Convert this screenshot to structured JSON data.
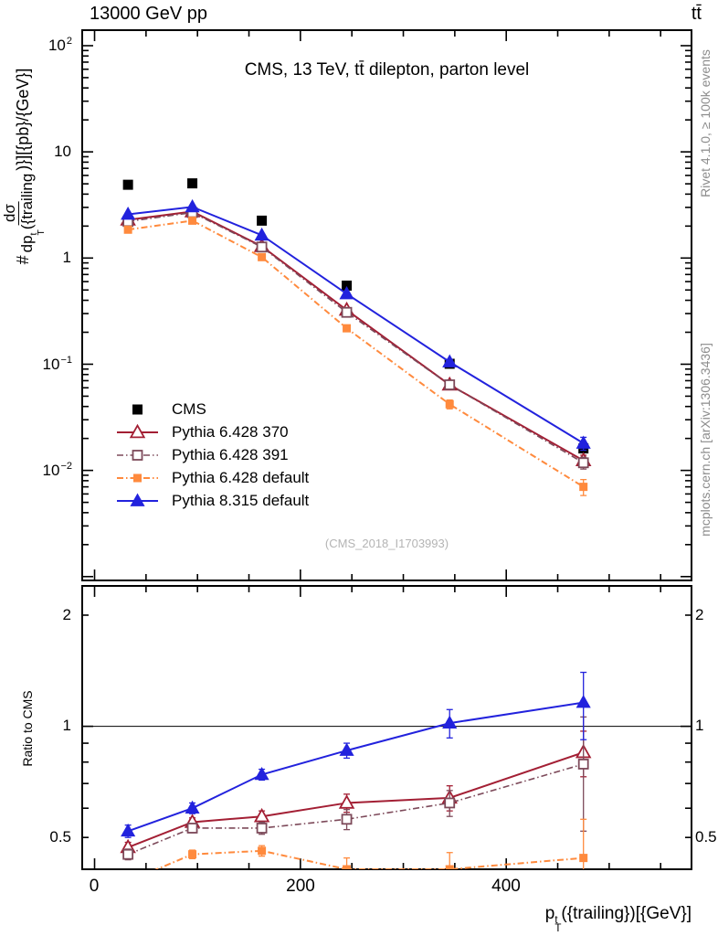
{
  "header": {
    "beam_energy": "13000 GeV pp",
    "process": "tt̄"
  },
  "plot_title": "CMS, 13 TeV, tt̄ dilepton, parton level",
  "watermark": "(CMS_2018_I1703993)",
  "side_notes": {
    "generator_note": "Rivet 4.1.0, ≥ 100k events",
    "site_note": "mcplots.cern.ch [arXiv:1306.3436]"
  },
  "axes": {
    "y_top_title": {
      "prefix": "#",
      "numerator": "dσ",
      "den_base": "dp",
      "den_sup": "t",
      "den_sub": "T",
      "den_tail": "({trailing",
      "suffix": ")}][{pb}/{GeV}]"
    },
    "y_top_ticks": [
      {
        "base": "10",
        "exp": "2"
      },
      {
        "base": "10",
        "exp": ""
      },
      {
        "base": "1",
        "exp": ""
      },
      {
        "base": "10",
        "exp": "−1"
      },
      {
        "base": "10",
        "exp": "−2"
      }
    ],
    "y_bottom_label": "Ratio to CMS",
    "y_bottom_ticks": [
      "2",
      "1",
      "0.5"
    ],
    "x_ticks": [
      "0",
      "200",
      "400"
    ],
    "x_title": {
      "base": "p",
      "sup": "t",
      "sub": "T",
      "tail": "({trailing})[{GeV}]"
    }
  },
  "chart_data": {
    "type": "line",
    "title": "CMS, 13 TeV, tt̄ dilepton, parton level",
    "xlabel": "p_T^t({trailing}) [GeV]",
    "ylabel": "# dσ/dp_T^t({trailing}) [pb/GeV]",
    "xlim": [
      -12,
      580
    ],
    "x": [
      32.5,
      95,
      162.5,
      245,
      345,
      475
    ],
    "top_panel": {
      "ylog": true,
      "ylim": [
        0.00092,
        140
      ]
    },
    "bottom_panel": {
      "ylog": true,
      "ylim": [
        0.41,
        2.4
      ],
      "ref_line": 1,
      "ylabel": "Ratio to CMS"
    },
    "legend_position": "middle-left",
    "series": [
      {
        "label": "CMS",
        "color": "#000000",
        "marker": "square-filled",
        "line": "none",
        "y": [
          4.9,
          5.05,
          2.25,
          0.55,
          0.101,
          0.0161
        ],
        "yerr": [
          0,
          0,
          0,
          0,
          0,
          0
        ],
        "ratio": null,
        "ratio_err": null
      },
      {
        "label": "Pythia 6.428 370",
        "color": "#a31f34",
        "marker": "triangle-open",
        "line": "solid",
        "y": [
          2.29,
          2.74,
          1.29,
          0.324,
          0.064,
          0.0124
        ],
        "yerr": [
          0,
          0,
          0,
          0,
          0.004,
          0.0015
        ],
        "ratio": [
          0.47,
          0.55,
          0.57,
          0.62,
          0.64,
          0.85
        ],
        "ratio_err": [
          0.015,
          0.015,
          0.02,
          0.035,
          0.05,
          0.12
        ]
      },
      {
        "label": "Pythia 6.428 391",
        "color": "#7d4a5a",
        "marker": "square-open",
        "line": "dashdot",
        "y": [
          2.21,
          2.68,
          1.27,
          0.308,
          0.064,
          0.0118
        ],
        "yerr": [
          0,
          0,
          0,
          0,
          0.004,
          0.0015
        ],
        "ratio": [
          0.45,
          0.53,
          0.53,
          0.56,
          0.62,
          0.79
        ],
        "ratio_err": [
          0.015,
          0.015,
          0.02,
          0.035,
          0.05,
          0.27
        ]
      },
      {
        "label": "Pythia 6.428 default",
        "color": "#ff8a3d",
        "marker": "square-filled",
        "line": "dashdot",
        "y": [
          1.85,
          2.25,
          1.02,
          0.218,
          0.042,
          0.007
        ],
        "yerr": [
          0.06,
          0.06,
          0.03,
          0.012,
          0.004,
          0.0012
        ],
        "ratio": [
          0.38,
          0.45,
          0.46,
          0.41,
          0.41,
          0.44
        ],
        "ratio_err": [
          0.01,
          0.012,
          0.015,
          0.03,
          0.045,
          0.12
        ]
      },
      {
        "label": "Pythia 8.315 default",
        "color": "#2222dd",
        "marker": "triangle-filled",
        "line": "solid",
        "y": [
          2.58,
          3.03,
          1.64,
          0.46,
          0.105,
          0.018
        ],
        "yerr": [
          0.07,
          0.07,
          0.04,
          0.012,
          0.006,
          0.0025
        ],
        "ratio": [
          0.52,
          0.6,
          0.74,
          0.86,
          1.02,
          1.16
        ],
        "ratio_err": [
          0.02,
          0.02,
          0.025,
          0.04,
          0.09,
          0.24
        ]
      }
    ]
  }
}
